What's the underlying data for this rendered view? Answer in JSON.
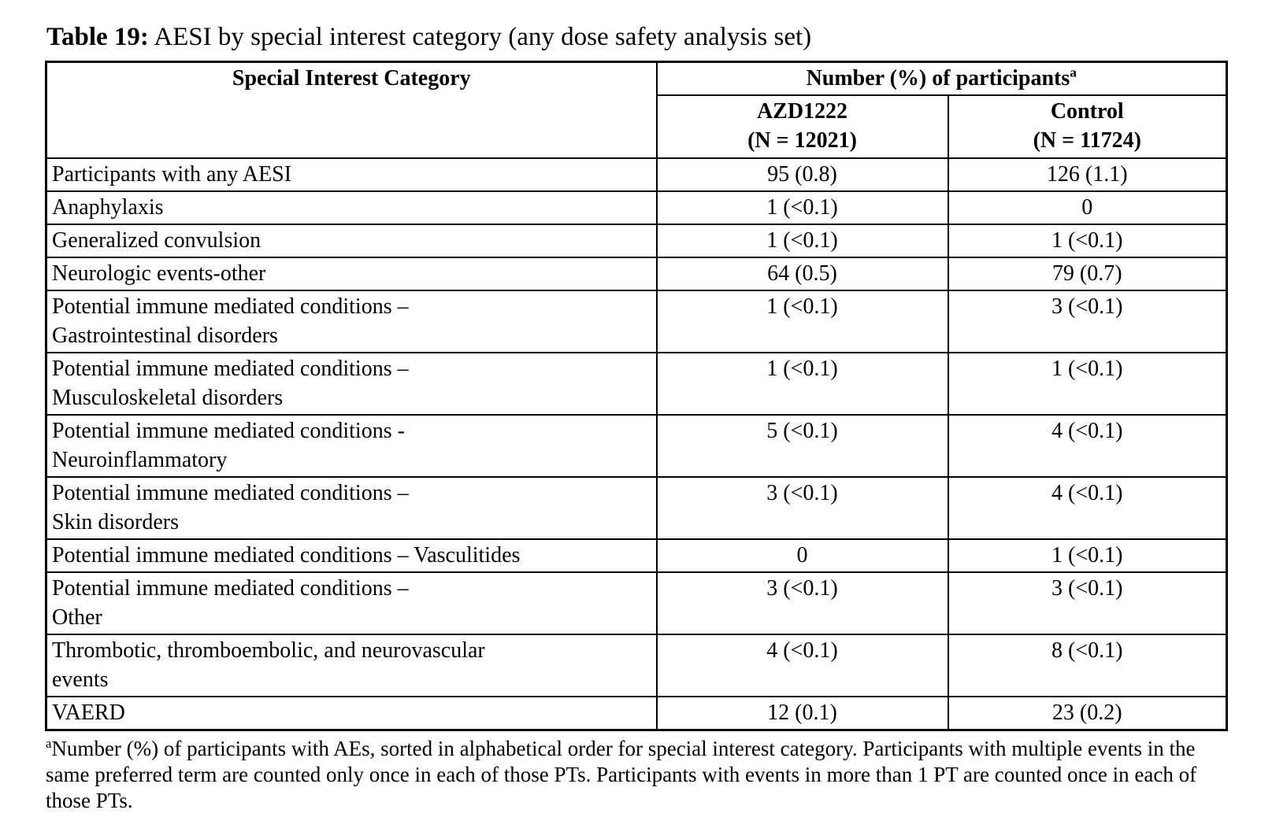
{
  "title": {
    "label": "Table 19:",
    "text": " AESI by special interest category (any dose safety analysis set)"
  },
  "table": {
    "header": {
      "category": "Special Interest Category",
      "participants": "Number (%) of participants",
      "participants_sup": "a",
      "arm1": "AZD1222\n(N = 12021)",
      "arm2": "Control\n(N = 11724)"
    },
    "rows": [
      {
        "category": "Participants with any AESI",
        "azd1222": "95 (0.8)",
        "control": "126 (1.1)"
      },
      {
        "category": "Anaphylaxis",
        "azd1222": "1 (<0.1)",
        "control": "0"
      },
      {
        "category": "Generalized convulsion",
        "azd1222": "1 (<0.1)",
        "control": "1 (<0.1)"
      },
      {
        "category": "Neurologic events-other",
        "azd1222": "64 (0.5)",
        "control": "79 (0.7)"
      },
      {
        "category": "Potential immune mediated conditions –\nGastrointestinal disorders",
        "azd1222": "1 (<0.1)",
        "control": "3 (<0.1)"
      },
      {
        "category": "Potential immune mediated conditions –\nMusculoskeletal disorders",
        "azd1222": "1 (<0.1)",
        "control": "1 (<0.1)"
      },
      {
        "category": "Potential immune mediated conditions -\nNeuroinflammatory",
        "azd1222": "5 (<0.1)",
        "control": "4 (<0.1)"
      },
      {
        "category": "Potential immune mediated conditions –\nSkin disorders",
        "azd1222": "3 (<0.1)",
        "control": "4 (<0.1)"
      },
      {
        "category": "Potential immune mediated conditions – Vasculitides",
        "azd1222": "0",
        "control": "1 (<0.1)"
      },
      {
        "category": "Potential immune mediated conditions –\nOther",
        "azd1222": "3 (<0.1)",
        "control": "3 (<0.1)"
      },
      {
        "category": "Thrombotic, thromboembolic, and neurovascular\nevents",
        "azd1222": "4 (<0.1)",
        "control": "8 (<0.1)"
      },
      {
        "category": "VAERD",
        "azd1222": "12 (0.1)",
        "control": "23 (0.2)"
      }
    ]
  },
  "footnote": {
    "sup": "a",
    "text": "Number (%) of participants with AEs, sorted in alphabetical order for special interest category. Participants with multiple events in the same preferred term are counted only once in each of those PTs. Participants with events in more than 1 PT are counted once in each of those PTs."
  }
}
